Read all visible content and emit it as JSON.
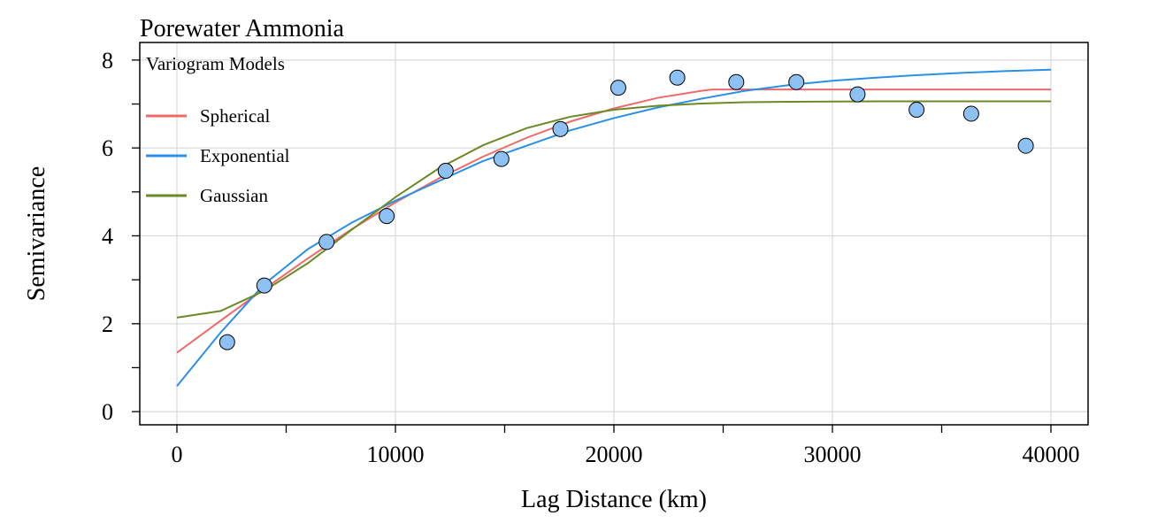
{
  "chart_data": {
    "type": "scatter",
    "title": "Porewater Ammonia",
    "xlabel": "Lag Distance (km)",
    "ylabel": "Semivariance",
    "xlim": [
      -1700,
      41700
    ],
    "ylim": [
      -0.3,
      8.4
    ],
    "x_ticks": [
      0,
      10000,
      20000,
      30000,
      40000
    ],
    "x_minor_ticks": [
      5000,
      15000,
      25000,
      35000
    ],
    "y_ticks": [
      0,
      2,
      4,
      6,
      8
    ],
    "y_minor_ticks": [
      1,
      3,
      5,
      7
    ],
    "grid": true,
    "legend": {
      "title": "Variogram Models",
      "position": "top-left",
      "entries": [
        "Spherical",
        "Exponential",
        "Gaussian"
      ]
    },
    "points": {
      "color": "#8ec1f3",
      "x": [
        2300,
        4000,
        6850,
        9600,
        12300,
        14850,
        17550,
        20200,
        22900,
        25600,
        28350,
        31150,
        33850,
        36350,
        38850
      ],
      "y": [
        1.58,
        2.87,
        3.86,
        4.45,
        5.48,
        5.75,
        6.43,
        7.37,
        7.6,
        7.5,
        7.5,
        7.22,
        6.87,
        6.78,
        6.05
      ]
    },
    "series": [
      {
        "name": "Spherical",
        "color": "#ee6a6a",
        "model": "spherical",
        "nugget": 1.34,
        "sill": 7.33,
        "range": 24500,
        "x": [
          0,
          2000,
          4000,
          6000,
          8000,
          10000,
          12000,
          14000,
          16000,
          18000,
          20000,
          22000,
          24000,
          24500,
          28000,
          32000,
          36000,
          40000
        ],
        "y": [
          1.34,
          2.07,
          2.79,
          3.49,
          4.15,
          4.76,
          5.31,
          5.8,
          6.23,
          6.6,
          6.9,
          7.14,
          7.3,
          7.33,
          7.33,
          7.33,
          7.33,
          7.33
        ]
      },
      {
        "name": "Exponential",
        "color": "#2b8fe6",
        "model": "exponential",
        "x": [
          0,
          2000,
          4000,
          6000,
          8000,
          10000,
          12000,
          14000,
          16000,
          18000,
          20000,
          22000,
          24000,
          26000,
          28000,
          30000,
          32000,
          34000,
          36000,
          38000,
          40000
        ],
        "y": [
          0.58,
          1.8,
          2.9,
          3.7,
          4.3,
          4.8,
          5.25,
          5.7,
          6.05,
          6.4,
          6.68,
          6.92,
          7.12,
          7.3,
          7.43,
          7.53,
          7.6,
          7.66,
          7.71,
          7.75,
          7.78
        ]
      },
      {
        "name": "Gaussian",
        "color": "#6b8a26",
        "model": "gaussian",
        "nugget": 2.14,
        "sill": 7.06,
        "range": 11500,
        "x": [
          0,
          2000,
          4000,
          6000,
          8000,
          10000,
          12000,
          14000,
          16000,
          18000,
          20000,
          22000,
          24000,
          26000,
          28000,
          32000,
          36000,
          40000
        ],
        "y": [
          2.14,
          2.29,
          2.75,
          3.38,
          4.14,
          4.88,
          5.54,
          6.06,
          6.45,
          6.71,
          6.87,
          6.96,
          7.01,
          7.04,
          7.05,
          7.06,
          7.06,
          7.06
        ]
      }
    ]
  }
}
